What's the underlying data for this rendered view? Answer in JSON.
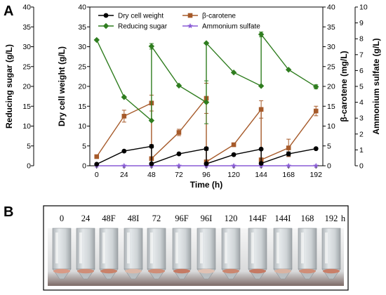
{
  "panel_a_label": "A",
  "panel_b_label": "B",
  "chart_data": {
    "type": "line",
    "x": [
      0,
      24,
      48,
      48,
      72,
      96,
      96,
      120,
      144,
      144,
      168,
      192
    ],
    "x_ticks": [
      "0",
      "24",
      "48",
      "72",
      "96",
      "120",
      "144",
      "168",
      "192"
    ],
    "x_tick_values": [
      0,
      24,
      48,
      72,
      96,
      120,
      144,
      168,
      192
    ],
    "xlabel": "Time (h)",
    "xlim": [
      -6,
      198
    ],
    "grid": false,
    "legend_position": "top-center",
    "axes": {
      "reducing_sugar": {
        "label": "Reducing sugar (g/L)",
        "lim": [
          0,
          40
        ],
        "ticks": [
          0,
          5,
          10,
          15,
          20,
          25,
          30,
          35,
          40
        ]
      },
      "dry_cell_weight": {
        "label": "Dry cell weight (g/L)",
        "lim": [
          0,
          40
        ],
        "ticks": [
          0,
          5,
          10,
          15,
          20,
          25,
          30,
          35,
          40
        ]
      },
      "beta_carotene": {
        "label": "β-carotene  (mg/L)",
        "lim": [
          0,
          40
        ],
        "ticks": [
          0,
          5,
          10,
          15,
          20,
          25,
          30,
          35,
          40
        ]
      },
      "ammonium_sulfate": {
        "label": "Ammonium sulfate (g/L)",
        "lim": [
          0,
          10
        ],
        "ticks": [
          0,
          1,
          2,
          3,
          4,
          5,
          6,
          7,
          8,
          9,
          10
        ]
      }
    },
    "series": [
      {
        "name": "Dry cell weight",
        "axis": "dry_cell_weight",
        "color": "#000000",
        "marker": "circle",
        "segments": [
          [
            [
              0,
              0.4
            ],
            [
              24,
              3.7
            ],
            [
              48,
              4.9
            ]
          ],
          [
            [
              48,
              0.5
            ],
            [
              72,
              3.0
            ],
            [
              96,
              4.3
            ]
          ],
          [
            [
              96,
              0.5
            ],
            [
              120,
              2.8
            ],
            [
              144,
              4.2
            ]
          ],
          [
            [
              144,
              0.6
            ],
            [
              168,
              3.0
            ],
            [
              192,
              4.3
            ]
          ]
        ],
        "errors": [
          [
            48,
            4.9,
            0.4
          ],
          [
            96,
            4.3,
            0.4
          ],
          [
            168,
            3.0,
            0.5
          ]
        ]
      },
      {
        "name": "Reducing sugar",
        "axis": "reducing_sugar",
        "color": "#2f7d1f",
        "marker": "diamond",
        "segments": [
          [
            [
              0,
              31.7
            ],
            [
              24,
              17.3
            ],
            [
              48,
              11.4
            ]
          ],
          [
            [
              48,
              30.1
            ],
            [
              72,
              20.2
            ],
            [
              96,
              16.0
            ]
          ],
          [
            [
              96,
              30.9
            ],
            [
              120,
              23.5
            ],
            [
              144,
              20.1
            ]
          ],
          [
            [
              144,
              33.1
            ],
            [
              168,
              24.2
            ],
            [
              192,
              19.9
            ]
          ]
        ],
        "errors": [
          [
            48,
            30.1,
            0.7
          ],
          [
            144,
            33.1,
            0.6
          ],
          [
            192,
            19.9,
            0.5
          ],
          [
            96,
            16.0,
            5.4
          ]
        ]
      },
      {
        "name": "β-carotene",
        "axis": "beta_carotene",
        "color": "#a65a2a",
        "marker": "square",
        "segments": [
          [
            [
              0,
              2.3
            ],
            [
              24,
              12.5
            ],
            [
              48,
              15.8
            ]
          ],
          [
            [
              48,
              1.8
            ],
            [
              72,
              8.4
            ],
            [
              96,
              17.0
            ]
          ],
          [
            [
              96,
              1.0
            ],
            [
              120,
              5.3
            ],
            [
              144,
              14.2
            ]
          ],
          [
            [
              144,
              1.5
            ],
            [
              168,
              4.5
            ],
            [
              192,
              13.8
            ]
          ]
        ],
        "errors": [
          [
            24,
            12.5,
            1.5
          ],
          [
            48,
            15.8,
            2.0
          ],
          [
            72,
            8.4,
            0.8
          ],
          [
            96,
            17.0,
            3.8
          ],
          [
            144,
            14.2,
            2.2
          ],
          [
            168,
            4.5,
            2.2
          ],
          [
            192,
            13.8,
            1.2
          ]
        ]
      },
      {
        "name": "Ammonium sulfate",
        "axis": "ammonium_sulfate",
        "color": "#8a5cd6",
        "marker": "star",
        "segments": [
          [
            [
              0,
              0.0
            ],
            [
              24,
              0.0
            ],
            [
              48,
              0.0
            ],
            [
              72,
              0.0
            ],
            [
              96,
              0.0
            ],
            [
              120,
              0.0
            ],
            [
              144,
              0.0
            ],
            [
              168,
              0.0
            ],
            [
              192,
              0.0
            ]
          ]
        ],
        "errors": []
      }
    ]
  },
  "photo": {
    "labels": [
      "0",
      "24",
      "48F",
      "48I",
      "72",
      "96F",
      "96I",
      "120",
      "144F",
      "144I",
      "168",
      "192"
    ],
    "unit": "h"
  }
}
